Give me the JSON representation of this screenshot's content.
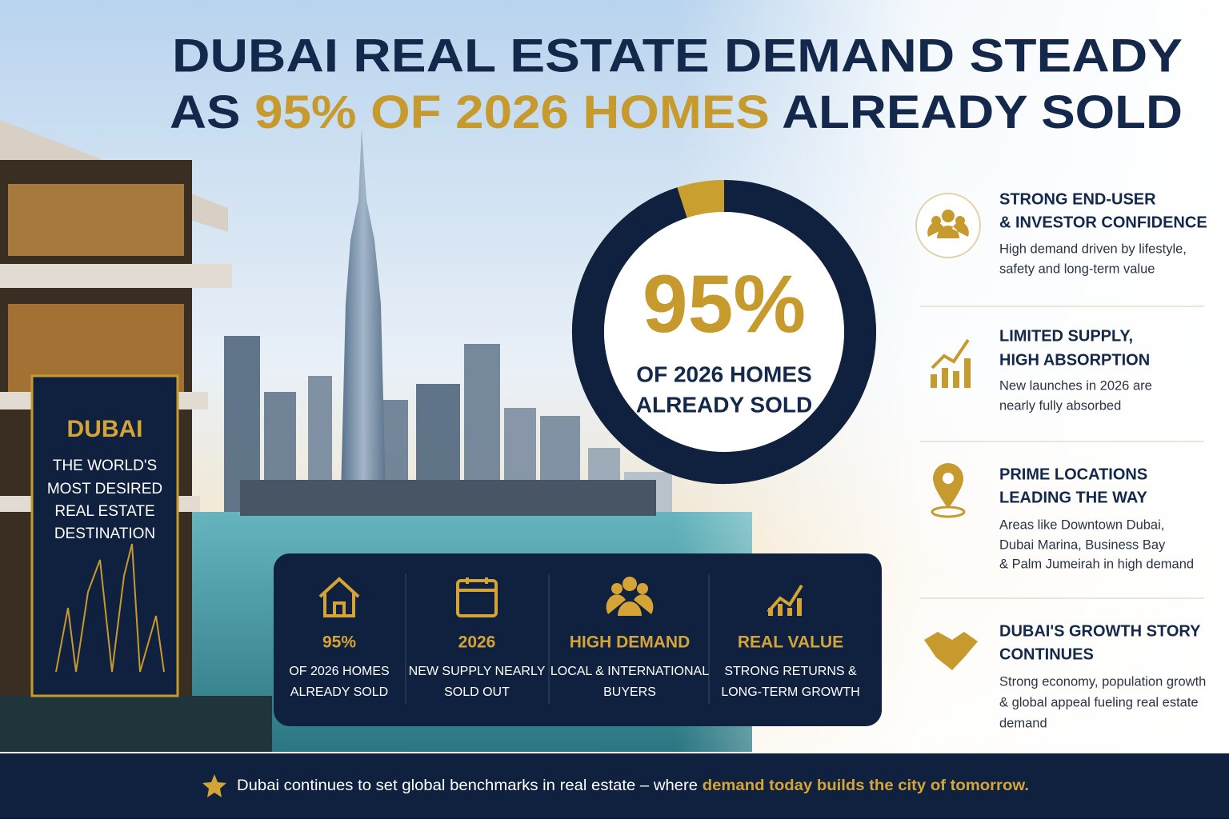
{
  "header": {
    "title_line1": "DUBAI REAL ESTATE DEMAND STEADY",
    "title_line2": [
      "AS ",
      "95% OF 2026 HOMES",
      " ALREADY SOLD"
    ]
  },
  "sign": {
    "title": "DUBAI",
    "lines": [
      "THE WORLD'S",
      "MOST DESIRED",
      "REAL ESTATE",
      "DESTINATION"
    ]
  },
  "donut": {
    "value": 95,
    "label": "95%",
    "caption": [
      "OF 2026 HOMES",
      "ALREADY SOLD"
    ]
  },
  "stats": [
    {
      "value": "95%",
      "lines": [
        "OF 2026 HOMES",
        "ALREADY SOLD"
      ]
    },
    {
      "value": "2026",
      "lines": [
        "NEW SUPPLY NEARLY",
        "SOLD OUT"
      ]
    },
    {
      "value": "HIGH DEMAND",
      "lines": [
        "LOCAL & INTERNATIONAL",
        "BUYERS"
      ]
    },
    {
      "value": "REAL VALUE",
      "lines": [
        "STRONG RETURNS &",
        "LONG-TERM GROWTH"
      ]
    }
  ],
  "features": [
    {
      "title": [
        "STRONG END-USER",
        "& INVESTOR CONFIDENCE"
      ],
      "text": [
        "High demand driven by lifestyle,",
        "safety and long-term value"
      ]
    },
    {
      "title": [
        "LIMITED SUPPLY,",
        "HIGH ABSORPTION"
      ],
      "text": [
        "New launches in 2026 are",
        "nearly fully absorbed"
      ]
    },
    {
      "title": [
        "PRIME LOCATIONS",
        "LEADING THE WAY"
      ],
      "text": [
        "Areas like Downtown Dubai,",
        "Dubai Marina, Business Bay",
        "& Palm Jumeirah in high demand"
      ]
    },
    {
      "title": [
        "DUBAI'S GROWTH STORY",
        "CONTINUES"
      ],
      "text": [
        "Strong economy, population growth",
        "& global appeal fueling real estate",
        "demand"
      ]
    }
  ],
  "footer": [
    "Dubai continues to set global benchmarks in real estate – where ",
    "demand today builds the city of tomorrow."
  ]
}
